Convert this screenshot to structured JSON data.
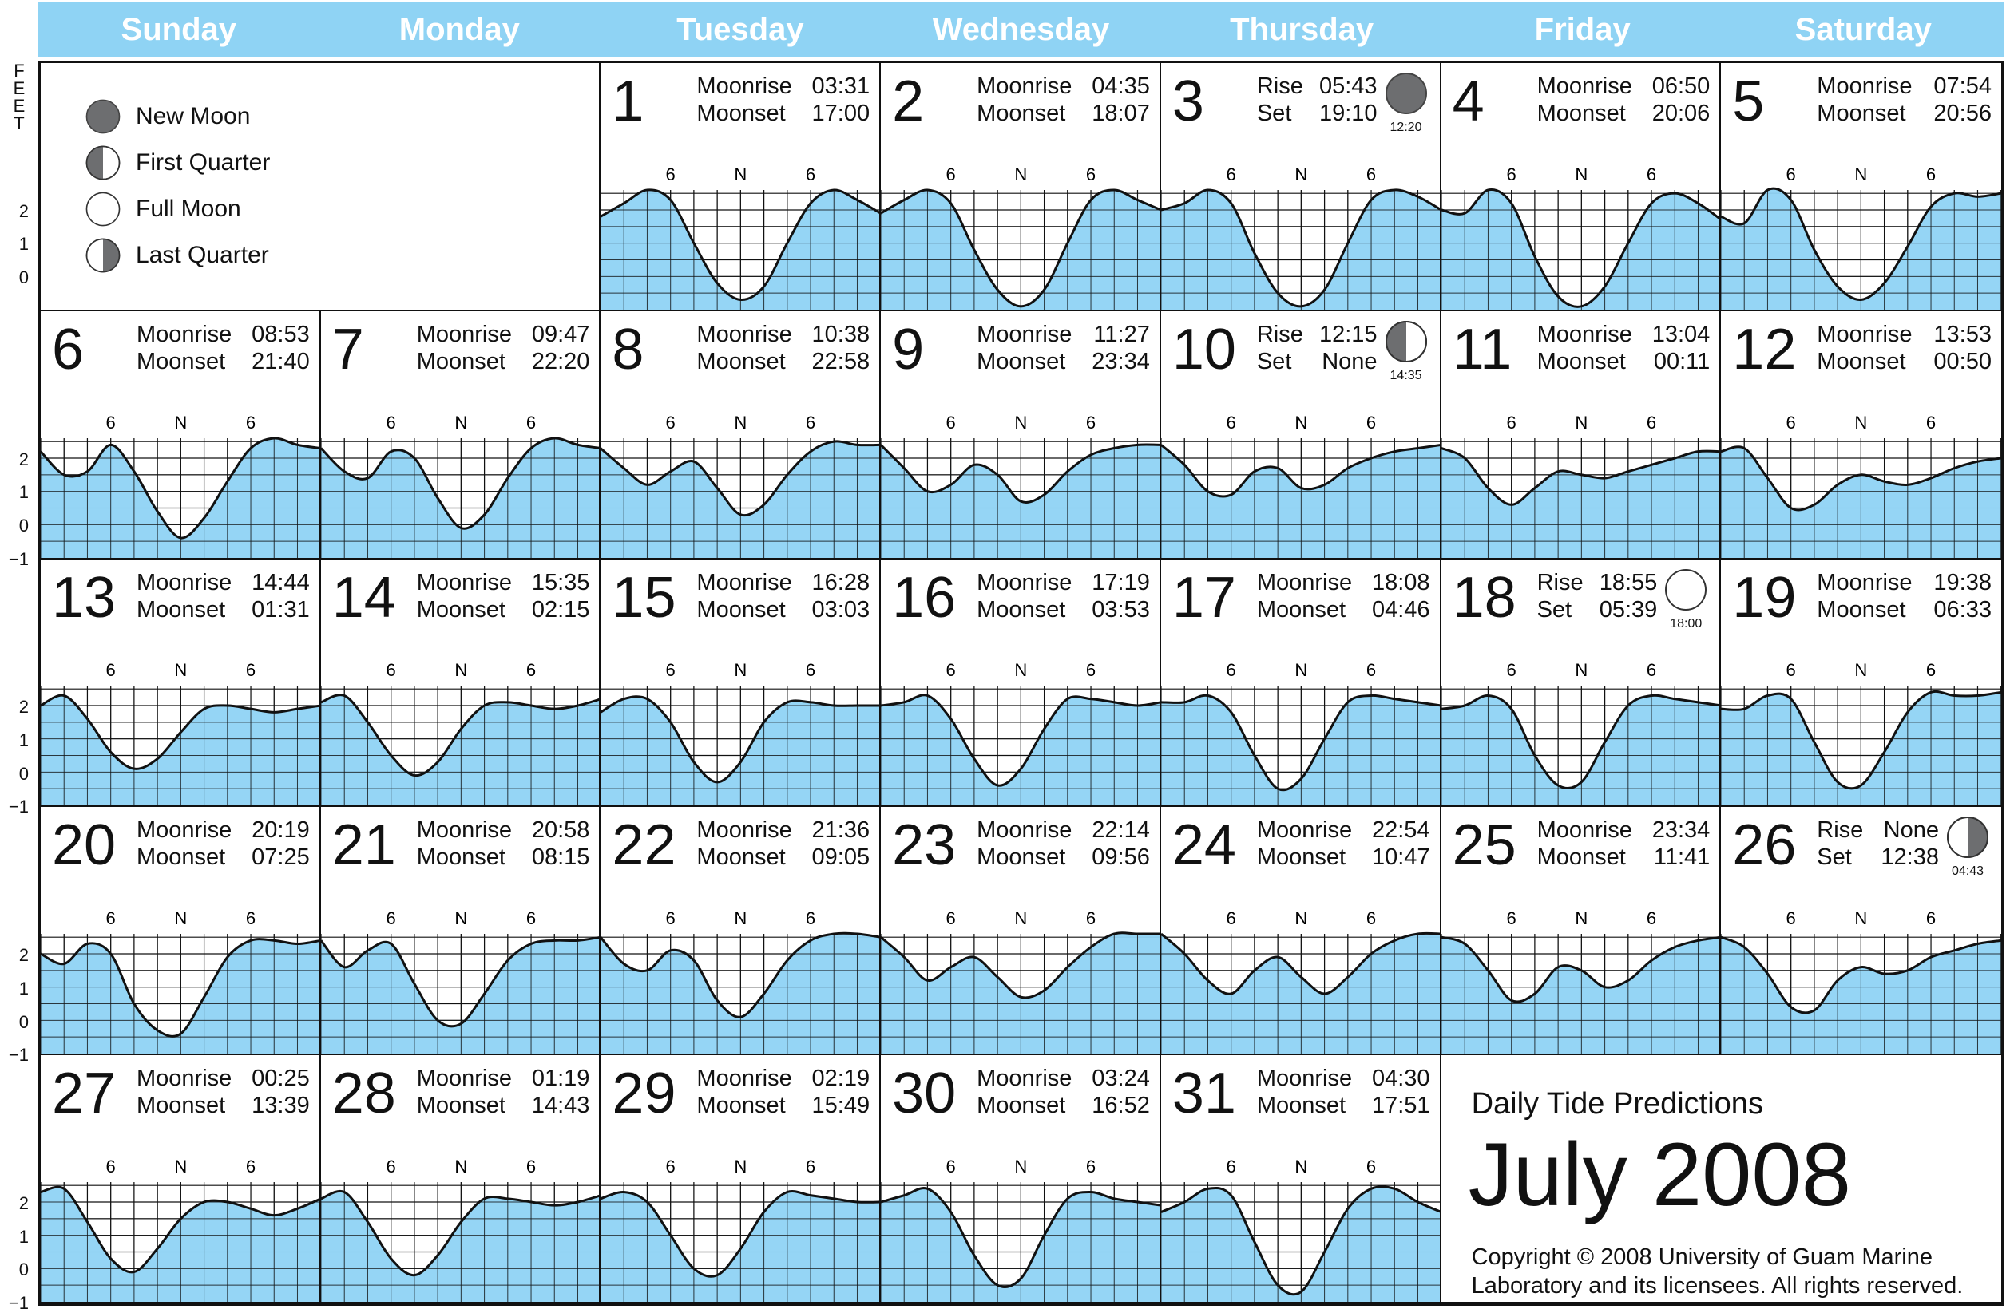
{
  "header": {
    "days": [
      "Sunday",
      "Monday",
      "Tuesday",
      "Wednesday",
      "Thursday",
      "Friday",
      "Saturday"
    ]
  },
  "axis": {
    "unit_label": "FEET",
    "y_ticks": [
      "2",
      "1",
      "0",
      "−1"
    ],
    "time_ticks": [
      "6",
      "N",
      "6"
    ]
  },
  "legend": [
    {
      "phase": "new",
      "label": "New Moon"
    },
    {
      "phase": "first",
      "label": "First Quarter"
    },
    {
      "phase": "full",
      "label": "Full Moon"
    },
    {
      "phase": "last",
      "label": "Last Quarter"
    }
  ],
  "title": {
    "subtitle": "Daily Tide Predictions",
    "main": "July 2008",
    "copyright": "Copyright © 2008  University of Guam Marine Laboratory and its licensees.  All rights reserved."
  },
  "colors": {
    "header": "#8fd3f4",
    "water": "#8fd3f4",
    "moon_dark": "#6d6e70",
    "line": "#111111"
  },
  "chart_data": {
    "type": "area",
    "xlabel": "",
    "ylabel": "FEET",
    "ylim": [
      -1,
      2.6
    ],
    "x_ticks": [
      "6",
      "N",
      "6"
    ],
    "days": [
      {
        "day": 1,
        "r_label": "Moonrise",
        "r": "03:31",
        "s_label": "Moonset",
        "s": "17:00",
        "tide": [
          1.8,
          2.2,
          2.6,
          2.3,
          1.0,
          -0.2,
          -0.7,
          -0.3,
          1.0,
          2.2,
          2.6,
          2.3,
          1.9
        ]
      },
      {
        "day": 2,
        "r_label": "Moonrise",
        "r": "04:35",
        "s_label": "Moonset",
        "s": "18:07",
        "tide": [
          1.9,
          2.3,
          2.6,
          2.2,
          0.8,
          -0.4,
          -0.9,
          -0.4,
          1.0,
          2.3,
          2.6,
          2.3,
          2.0
        ]
      },
      {
        "day": 3,
        "r_label": "Rise",
        "r": "05:43",
        "s_label": "Set",
        "s": "19:10",
        "moon": "new",
        "moon_time": "12:20",
        "tide": [
          2.0,
          2.2,
          2.6,
          2.2,
          0.7,
          -0.5,
          -0.9,
          -0.4,
          1.0,
          2.3,
          2.6,
          2.4,
          2.0
        ]
      },
      {
        "day": 4,
        "r_label": "Moonrise",
        "r": "06:50",
        "s_label": "Moonset",
        "s": "20:06",
        "tide": [
          2.0,
          1.9,
          2.6,
          2.2,
          0.6,
          -0.6,
          -0.9,
          -0.3,
          1.0,
          2.2,
          2.5,
          2.2,
          1.7
        ]
      },
      {
        "day": 5,
        "r_label": "Moonrise",
        "r": "07:54",
        "s_label": "Moonset",
        "s": "20:56",
        "tide": [
          1.8,
          1.6,
          2.6,
          2.3,
          0.8,
          -0.3,
          -0.7,
          -0.2,
          0.9,
          2.1,
          2.5,
          2.4,
          2.5
        ]
      },
      {
        "day": 6,
        "r_label": "Moonrise",
        "r": "08:53",
        "s_label": "Moonset",
        "s": "21:40",
        "tide": [
          2.2,
          1.5,
          1.6,
          2.4,
          1.6,
          0.4,
          -0.4,
          0.2,
          1.3,
          2.3,
          2.6,
          2.4,
          2.3
        ]
      },
      {
        "day": 7,
        "r_label": "Moonrise",
        "r": "09:47",
        "s_label": "Moonset",
        "s": "22:20",
        "tide": [
          2.3,
          1.6,
          1.4,
          2.2,
          2.0,
          0.8,
          -0.1,
          0.3,
          1.4,
          2.3,
          2.6,
          2.4,
          2.3
        ]
      },
      {
        "day": 8,
        "r_label": "Moonrise",
        "r": "10:38",
        "s_label": "Moonset",
        "s": "22:58",
        "tide": [
          2.3,
          1.7,
          1.2,
          1.6,
          1.9,
          1.1,
          0.3,
          0.6,
          1.5,
          2.2,
          2.5,
          2.4,
          2.4
        ]
      },
      {
        "day": 9,
        "r_label": "Moonrise",
        "r": "11:27",
        "s_label": "Moonset",
        "s": "23:34",
        "tide": [
          2.4,
          1.7,
          1.0,
          1.2,
          1.8,
          1.5,
          0.7,
          0.9,
          1.6,
          2.1,
          2.3,
          2.4,
          2.4
        ]
      },
      {
        "day": 10,
        "r_label": "Rise",
        "r": "12:15",
        "s_label": "Set",
        "s": "None",
        "moon": "first",
        "moon_time": "14:35",
        "tide": [
          2.4,
          1.8,
          1.0,
          0.9,
          1.6,
          1.7,
          1.1,
          1.2,
          1.7,
          2.0,
          2.2,
          2.3,
          2.4
        ]
      },
      {
        "day": 11,
        "r_label": "Moonrise",
        "r": "13:04",
        "s_label": "Moonset",
        "s": "00:11",
        "tide": [
          2.3,
          2.0,
          1.1,
          0.6,
          1.1,
          1.6,
          1.5,
          1.4,
          1.6,
          1.8,
          2.0,
          2.2,
          2.2
        ]
      },
      {
        "day": 12,
        "r_label": "Moonrise",
        "r": "13:53",
        "s_label": "Moonset",
        "s": "00:50",
        "tide": [
          2.2,
          2.3,
          1.4,
          0.5,
          0.6,
          1.2,
          1.5,
          1.3,
          1.2,
          1.4,
          1.7,
          1.9,
          2.0
        ]
      },
      {
        "day": 13,
        "r_label": "Moonrise",
        "r": "14:44",
        "s_label": "Moonset",
        "s": "01:31",
        "tide": [
          2.0,
          2.3,
          1.6,
          0.6,
          0.1,
          0.4,
          1.2,
          1.9,
          2.0,
          1.9,
          1.8,
          1.9,
          2.0
        ]
      },
      {
        "day": 14,
        "r_label": "Moonrise",
        "r": "15:35",
        "s_label": "Moonset",
        "s": "02:15",
        "tide": [
          2.1,
          2.3,
          1.5,
          0.5,
          -0.1,
          0.3,
          1.3,
          2.0,
          2.1,
          2.0,
          1.9,
          2.0,
          2.2
        ]
      },
      {
        "day": 15,
        "r_label": "Moonrise",
        "r": "16:28",
        "s_label": "Moonset",
        "s": "03:03",
        "tide": [
          1.8,
          2.2,
          2.2,
          1.5,
          0.3,
          -0.3,
          0.3,
          1.5,
          2.1,
          2.1,
          2.0,
          2.0,
          2.0
        ]
      },
      {
        "day": 16,
        "r_label": "Moonrise",
        "r": "17:19",
        "s_label": "Moonset",
        "s": "03:53",
        "tide": [
          2.0,
          2.1,
          2.3,
          1.6,
          0.4,
          -0.4,
          0.1,
          1.3,
          2.2,
          2.2,
          2.1,
          2.0,
          2.1
        ]
      },
      {
        "day": 17,
        "r_label": "Moonrise",
        "r": "18:08",
        "s_label": "Moonset",
        "s": "04:46",
        "tide": [
          2.1,
          2.1,
          2.3,
          1.8,
          0.5,
          -0.5,
          -0.2,
          1.0,
          2.1,
          2.3,
          2.2,
          2.1,
          2.0
        ]
      },
      {
        "day": 18,
        "r_label": "Rise",
        "r": "18:55",
        "s_label": "Set",
        "s": "05:39",
        "moon": "full",
        "moon_time": "18:00",
        "tide": [
          1.9,
          2.0,
          2.3,
          1.9,
          0.5,
          -0.4,
          -0.3,
          0.9,
          2.0,
          2.3,
          2.2,
          2.1,
          2.0
        ]
      },
      {
        "day": 19,
        "r_label": "Moonrise",
        "r": "19:38",
        "s_label": "Moonset",
        "s": "06:33",
        "tide": [
          1.9,
          1.9,
          2.3,
          2.2,
          0.9,
          -0.3,
          -0.4,
          0.6,
          1.8,
          2.4,
          2.3,
          2.3,
          2.4
        ]
      },
      {
        "day": 20,
        "r_label": "Moonrise",
        "r": "20:19",
        "s_label": "Moonset",
        "s": "07:25",
        "tide": [
          2.0,
          1.7,
          2.3,
          2.0,
          0.5,
          -0.3,
          -0.4,
          0.7,
          1.9,
          2.4,
          2.4,
          2.3,
          2.4
        ]
      },
      {
        "day": 21,
        "r_label": "Moonrise",
        "r": "20:58",
        "s_label": "Moonset",
        "s": "08:15",
        "tide": [
          2.4,
          1.6,
          2.1,
          2.3,
          1.1,
          0.0,
          -0.1,
          0.8,
          1.8,
          2.3,
          2.4,
          2.4,
          2.5
        ]
      },
      {
        "day": 22,
        "r_label": "Moonrise",
        "r": "21:36",
        "s_label": "Moonset",
        "s": "09:05",
        "tide": [
          2.5,
          1.7,
          1.5,
          2.1,
          1.8,
          0.6,
          0.1,
          0.8,
          1.8,
          2.4,
          2.6,
          2.6,
          2.5
        ]
      },
      {
        "day": 23,
        "r_label": "Moonrise",
        "r": "22:14",
        "s_label": "Moonset",
        "s": "09:56",
        "tide": [
          2.5,
          1.9,
          1.2,
          1.6,
          1.9,
          1.3,
          0.7,
          0.9,
          1.6,
          2.2,
          2.6,
          2.6,
          2.6
        ]
      },
      {
        "day": 24,
        "r_label": "Moonrise",
        "r": "22:54",
        "s_label": "Moonset",
        "s": "10:47",
        "tide": [
          2.6,
          2.0,
          1.2,
          0.8,
          1.5,
          1.9,
          1.3,
          0.8,
          1.3,
          2.0,
          2.4,
          2.6,
          2.6
        ]
      },
      {
        "day": 25,
        "r_label": "Moonrise",
        "r": "23:34",
        "s_label": "Moonset",
        "s": "11:41",
        "tide": [
          2.5,
          2.3,
          1.5,
          0.6,
          0.8,
          1.6,
          1.5,
          1.0,
          1.2,
          1.8,
          2.2,
          2.4,
          2.5
        ]
      },
      {
        "day": 26,
        "r_label": "Rise",
        "r": "None",
        "s_label": "Set",
        "s": "12:38",
        "moon": "last",
        "moon_time": "04:43",
        "tide": [
          2.5,
          2.2,
          1.4,
          0.4,
          0.3,
          1.2,
          1.6,
          1.4,
          1.5,
          1.9,
          2.1,
          2.3,
          2.4
        ]
      },
      {
        "day": 27,
        "r_label": "Moonrise",
        "r": "00:25",
        "s_label": "Moonset",
        "s": "13:39",
        "tide": [
          2.3,
          2.4,
          1.4,
          0.3,
          -0.1,
          0.6,
          1.5,
          2.0,
          2.0,
          1.8,
          1.6,
          1.8,
          2.1
        ]
      },
      {
        "day": 28,
        "r_label": "Moonrise",
        "r": "01:19",
        "s_label": "Moonset",
        "s": "14:43",
        "tide": [
          2.1,
          2.3,
          1.4,
          0.3,
          -0.2,
          0.4,
          1.4,
          2.1,
          2.1,
          2.0,
          1.9,
          2.0,
          2.2
        ]
      },
      {
        "day": 29,
        "r_label": "Moonrise",
        "r": "02:19",
        "s_label": "Moonset",
        "s": "15:49",
        "tide": [
          2.1,
          2.3,
          2.0,
          1.0,
          0.0,
          -0.2,
          0.6,
          1.7,
          2.3,
          2.2,
          2.1,
          2.0,
          2.0
        ]
      },
      {
        "day": 30,
        "r_label": "Moonrise",
        "r": "03:24",
        "s_label": "Moonset",
        "s": "16:52",
        "tide": [
          2.0,
          2.2,
          2.4,
          1.7,
          0.4,
          -0.5,
          -0.3,
          1.0,
          2.1,
          2.3,
          2.1,
          2.0,
          1.9
        ]
      },
      {
        "day": 31,
        "r_label": "Moonrise",
        "r": "04:30",
        "s_label": "Moonset",
        "s": "17:51",
        "tide": [
          1.7,
          2.0,
          2.4,
          2.2,
          0.8,
          -0.5,
          -0.7,
          0.5,
          1.8,
          2.4,
          2.4,
          2.0,
          1.7
        ]
      }
    ]
  }
}
